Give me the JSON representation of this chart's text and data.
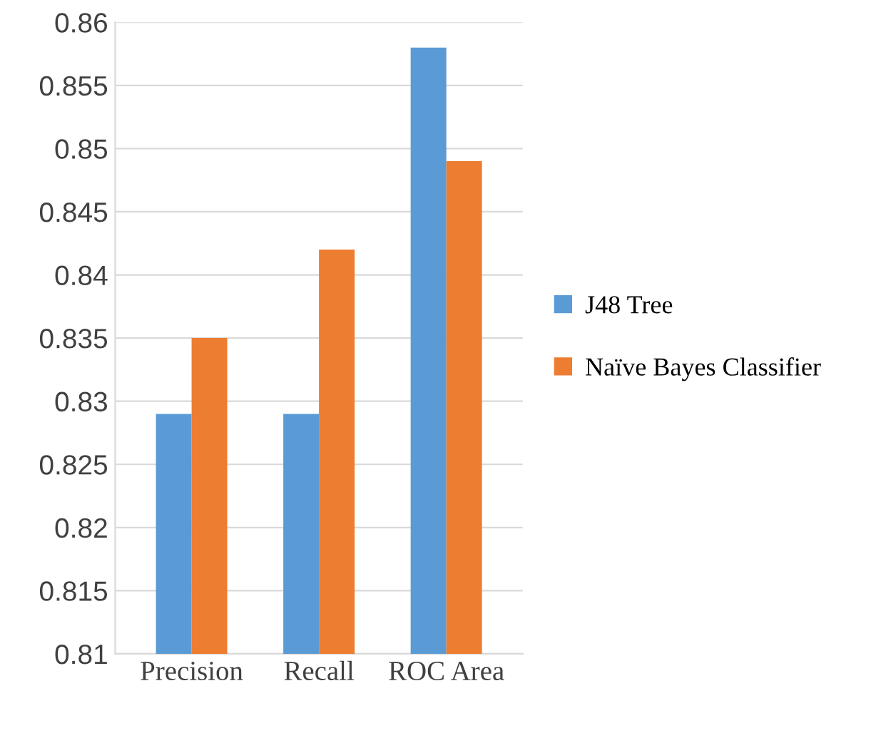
{
  "chart_data": {
    "type": "bar",
    "categories": [
      "Precision",
      "Recall",
      "ROC Area"
    ],
    "series": [
      {
        "name": "J48 Tree",
        "color": "#5b9bd5",
        "values": [
          0.829,
          0.829,
          0.858
        ]
      },
      {
        "name": "Naïve Bayes Classifier",
        "color": "#ed7d31",
        "values": [
          0.835,
          0.842,
          0.849
        ]
      }
    ],
    "ylim": [
      0.81,
      0.86
    ],
    "yticks": [
      0.81,
      0.815,
      0.82,
      0.825,
      0.83,
      0.835,
      0.84,
      0.845,
      0.85,
      0.855,
      0.86
    ],
    "grid": "y",
    "legend": "right"
  }
}
